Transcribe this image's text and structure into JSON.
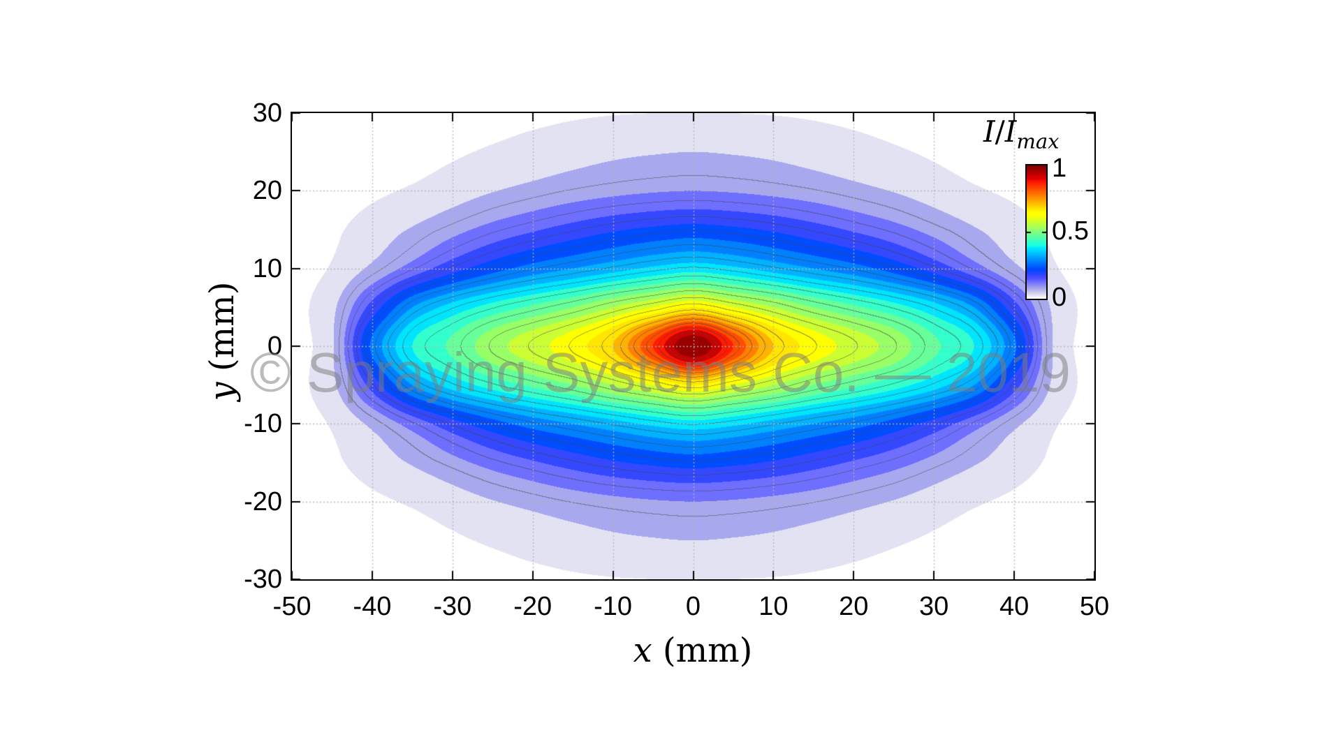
{
  "figure": {
    "watermark_text": "© Spraying Systems Co. — 2019"
  },
  "axes": {
    "x_label_var": "x",
    "x_label_unit": " (mm)",
    "y_label_var": "y",
    "y_label_unit": " (mm)"
  },
  "colorbar": {
    "title_num": "I",
    "title_slash": "/",
    "title_den": "I",
    "title_sub": "max",
    "tick_labels": [
      "1",
      "0.5",
      "0"
    ]
  },
  "chart_data": {
    "type": "heatmap",
    "subtype": "filled-contour",
    "title": "",
    "xlabel": "x (mm)",
    "ylabel": "y (mm)",
    "colorbar_label": "I/I_max",
    "colorbar_ticks": [
      1,
      0.5,
      0
    ],
    "xlim": [
      -50,
      50
    ],
    "ylim": [
      -30,
      30
    ],
    "x_ticks": [
      -50,
      -40,
      -30,
      -20,
      -10,
      0,
      10,
      20,
      30,
      40,
      50
    ],
    "x_tick_labels": [
      "-50",
      "-40",
      "-30",
      "-20",
      "-10",
      "0",
      "10",
      "20",
      "30",
      "40",
      "50"
    ],
    "y_ticks": [
      30,
      20,
      10,
      0,
      -10,
      -20,
      -30
    ],
    "y_tick_labels": [
      "30",
      "20",
      "10",
      "0",
      "-10",
      "-20",
      "-30"
    ],
    "grid_on": true,
    "grid_x_lines": [
      -40,
      -30,
      -20,
      -10,
      0,
      10,
      20,
      30,
      40
    ],
    "grid_y_lines": [
      -20,
      -10,
      0,
      10,
      20
    ],
    "levels": {
      "count": 20,
      "step": 0.05,
      "min": 0,
      "max": 1
    },
    "contour_line_levels_start": 0.075,
    "contour_line_levels_step": 0.05,
    "colormap": "jet-with-white-low",
    "field": {
      "comment": "I/Imax sampled on 5 mm grid, rows listed from y=+30 down to y=-30",
      "x": [
        -50,
        -45,
        -40,
        -35,
        -30,
        -25,
        -20,
        -15,
        -10,
        -5,
        0,
        5,
        10,
        15,
        20,
        25,
        30,
        35,
        40,
        45,
        50
      ],
      "y_rows_top_to_bottom": [
        30,
        25,
        20,
        15,
        10,
        5,
        0,
        -5,
        -10,
        -15,
        -20,
        -25,
        -30
      ],
      "values": [
        [
          0,
          0,
          0,
          0,
          0.001,
          0.003,
          0.006,
          0.009,
          0.011,
          0.012,
          0.013,
          0.012,
          0.011,
          0.009,
          0.006,
          0.003,
          0.001,
          0,
          0,
          0,
          0
        ],
        [
          0,
          0,
          0,
          0.002,
          0.008,
          0.016,
          0.025,
          0.034,
          0.042,
          0.047,
          0.05,
          0.047,
          0.042,
          0.034,
          0.025,
          0.016,
          0.008,
          0.002,
          0,
          0,
          0
        ],
        [
          0,
          0.002,
          0.007,
          0.016,
          0.031,
          0.048,
          0.063,
          0.077,
          0.088,
          0.096,
          0.1,
          0.096,
          0.088,
          0.077,
          0.063,
          0.048,
          0.031,
          0.016,
          0.007,
          0.002,
          0
        ],
        [
          0,
          0.007,
          0.027,
          0.054,
          0.085,
          0.117,
          0.144,
          0.17,
          0.193,
          0.21,
          0.22,
          0.21,
          0.193,
          0.17,
          0.144,
          0.117,
          0.085,
          0.054,
          0.027,
          0.007,
          0
        ],
        [
          0.002,
          0.015,
          0.06,
          0.12,
          0.18,
          0.23,
          0.27,
          0.3,
          0.33,
          0.36,
          0.38,
          0.36,
          0.33,
          0.3,
          0.27,
          0.23,
          0.18,
          0.12,
          0.06,
          0.015,
          0.002
        ],
        [
          0.004,
          0.04,
          0.17,
          0.3,
          0.37,
          0.42,
          0.46,
          0.5,
          0.55,
          0.6,
          0.65,
          0.6,
          0.55,
          0.5,
          0.46,
          0.42,
          0.37,
          0.3,
          0.17,
          0.04,
          0.004
        ],
        [
          0.005,
          0.045,
          0.26,
          0.4,
          0.46,
          0.53,
          0.58,
          0.63,
          0.7,
          0.85,
          1.0,
          0.85,
          0.7,
          0.63,
          0.58,
          0.53,
          0.46,
          0.4,
          0.26,
          0.045,
          0.005
        ],
        [
          0.004,
          0.04,
          0.17,
          0.3,
          0.37,
          0.42,
          0.46,
          0.5,
          0.55,
          0.6,
          0.65,
          0.6,
          0.55,
          0.5,
          0.46,
          0.42,
          0.37,
          0.3,
          0.17,
          0.04,
          0.004
        ],
        [
          0.002,
          0.015,
          0.06,
          0.12,
          0.18,
          0.23,
          0.27,
          0.3,
          0.33,
          0.36,
          0.38,
          0.36,
          0.33,
          0.3,
          0.27,
          0.23,
          0.18,
          0.12,
          0.06,
          0.015,
          0.002
        ],
        [
          0,
          0.007,
          0.027,
          0.054,
          0.085,
          0.117,
          0.144,
          0.17,
          0.193,
          0.21,
          0.22,
          0.21,
          0.193,
          0.17,
          0.144,
          0.117,
          0.085,
          0.054,
          0.027,
          0.007,
          0
        ],
        [
          0,
          0.002,
          0.007,
          0.016,
          0.031,
          0.048,
          0.063,
          0.077,
          0.088,
          0.096,
          0.1,
          0.096,
          0.088,
          0.077,
          0.063,
          0.048,
          0.031,
          0.016,
          0.007,
          0.002,
          0
        ],
        [
          0,
          0,
          0,
          0.002,
          0.008,
          0.016,
          0.025,
          0.034,
          0.042,
          0.047,
          0.05,
          0.047,
          0.042,
          0.034,
          0.025,
          0.016,
          0.008,
          0.002,
          0,
          0,
          0
        ],
        [
          0,
          0,
          0,
          0,
          0.001,
          0.003,
          0.006,
          0.009,
          0.011,
          0.012,
          0.013,
          0.012,
          0.011,
          0.009,
          0.006,
          0.003,
          0.001,
          0,
          0,
          0,
          0
        ]
      ]
    },
    "style_colors": {
      "contour_line": "#46463f",
      "grid_line": "#b4b4b4",
      "axis": "#000000",
      "watermark": "#7d7d7d",
      "background": "#ffffff"
    }
  }
}
